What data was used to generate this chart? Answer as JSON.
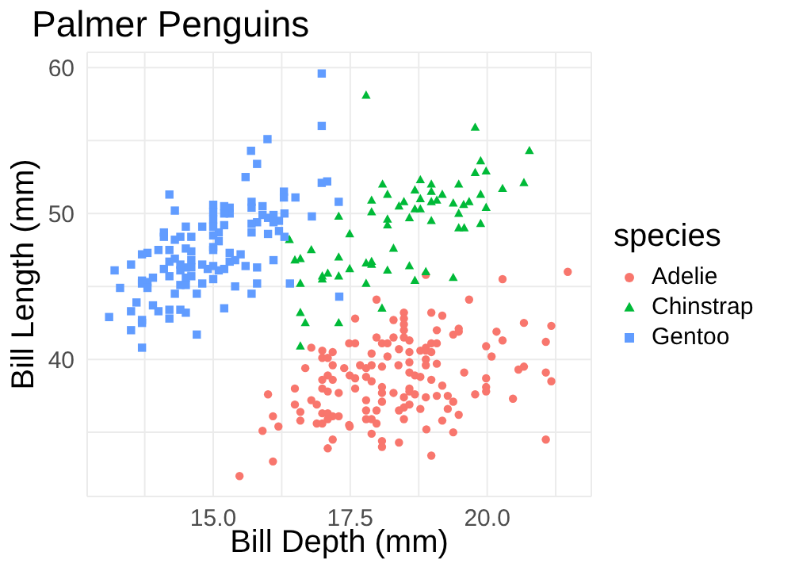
{
  "chart_data": {
    "type": "scatter",
    "title": "Palmer Penguins",
    "xlabel": "Bill Depth (mm)",
    "ylabel": "Bill Length (mm)",
    "legend_title": "species",
    "legend": "right",
    "grid": true,
    "xlim": [
      12.7,
      21.9
    ],
    "xticks": [
      {
        "value": 13.75,
        "label": null
      },
      {
        "value": 15,
        "label": "15.0"
      },
      {
        "value": 16.25,
        "label": null
      },
      {
        "value": 17.5,
        "label": "17.5"
      },
      {
        "value": 18.75,
        "label": null
      },
      {
        "value": 20,
        "label": "20.0"
      },
      {
        "value": 21.25,
        "label": null
      }
    ],
    "ylim": [
      30.6,
      61.05
    ],
    "yticks": [
      {
        "value": 35,
        "label": null
      },
      40,
      {
        "value": 45,
        "label": null
      },
      50,
      {
        "value": 55,
        "label": null
      },
      60
    ],
    "series": [
      {
        "name": "Adelie",
        "color": "#f8766d",
        "marker": "circle",
        "x": [
          18.88,
          20.28,
          21.47,
          17.98,
          19.67,
          17.59,
          18.29,
          18.48,
          18.48,
          18.98,
          19.18,
          20.67,
          21.17,
          19.08,
          19.38,
          19.48,
          19.48,
          20.17,
          20.28,
          21.07,
          17.98,
          18.29,
          18.48,
          18.58,
          18.48,
          18.48,
          18.08,
          18.18,
          17.48,
          17.59,
          16.79,
          16.99,
          17.18,
          18.39,
          18.58,
          18.78,
          18.88,
          18.98,
          19.08,
          18.88,
          18.98,
          17.89,
          18.18,
          16.99,
          17.09,
          18.88,
          18.88,
          19.98,
          20.08,
          16.68,
          17.18,
          17.39,
          17.68,
          17.79,
          17.89,
          18.08,
          18.38,
          18.58,
          19.08,
          20.67,
          20.57,
          21.07,
          21.17,
          19.58,
          18.58,
          18.68,
          18.78,
          17.09,
          17.18,
          17.49,
          17.59,
          17.79,
          17.89,
          16.99,
          16.99,
          18.98,
          19.18,
          19.98,
          19.98,
          19.98,
          19.78,
          16.49,
          16.0,
          17.09,
          17.29,
          17.59,
          18.08,
          18.08,
          18.29,
          18.58,
          18.58,
          18.68,
          18.88,
          19.08,
          19.28,
          20.47,
          16.79,
          16.89,
          16.49,
          16.59,
          17.79,
          18.08,
          18.48,
          18.48,
          18.58,
          18.39,
          19.28,
          19.38,
          19.48,
          18.78,
          16.99,
          17.09,
          17.18,
          17.29,
          17.09,
          17.79,
          17.79,
          17.89,
          17.98,
          17.98,
          18.48,
          16.89,
          16.99,
          17.48,
          17.49,
          16.59,
          16.09,
          16.19,
          15.9,
          17.89,
          18.08,
          18.08,
          18.39,
          18.89,
          19.18,
          19.38,
          17.18,
          17.09,
          21.07,
          16.09,
          18.98,
          15.48
        ],
        "values": [
          45.8,
          45.5,
          46.0,
          44.1,
          44.1,
          42.8,
          42.7,
          43.2,
          42.8,
          43.2,
          43.0,
          42.5,
          42.3,
          42.0,
          41.7,
          41.9,
          42.1,
          41.9,
          41.3,
          41.2,
          41.5,
          41.5,
          41.5,
          41.3,
          42.0,
          42.4,
          41.1,
          41.1,
          41.1,
          41.1,
          40.8,
          40.6,
          40.5,
          40.7,
          40.5,
          40.6,
          40.8,
          41.1,
          41.1,
          40.6,
          40.5,
          40.4,
          40.2,
          40.1,
          40.1,
          40.0,
          39.6,
          40.9,
          40.2,
          39.4,
          39.6,
          39.4,
          39.6,
          39.4,
          39.6,
          39.5,
          39.6,
          39.8,
          39.7,
          39.5,
          39.3,
          39.1,
          38.5,
          39.1,
          39.1,
          38.9,
          38.8,
          38.9,
          38.6,
          38.9,
          38.7,
          38.8,
          38.5,
          38.6,
          38.0,
          38.6,
          38.2,
          38.7,
          38.1,
          37.8,
          37.6,
          38.0,
          37.6,
          37.8,
          37.7,
          38.0,
          38.1,
          37.7,
          37.7,
          38.0,
          37.8,
          37.6,
          37.4,
          37.5,
          37.5,
          37.3,
          37.2,
          36.9,
          36.9,
          36.4,
          37.2,
          37.1,
          37.4,
          36.7,
          36.9,
          36.5,
          36.6,
          37.1,
          36.2,
          36.6,
          36.3,
          36.3,
          36.1,
          36.1,
          35.9,
          36.5,
          35.9,
          35.9,
          36.5,
          35.6,
          35.9,
          35.6,
          35.6,
          35.5,
          35.4,
          35.8,
          36.1,
          35.4,
          35.1,
          34.9,
          34.4,
          34.0,
          34.3,
          35.2,
          35.8,
          35.0,
          34.5,
          33.9,
          34.5,
          33.0,
          33.4,
          32.0
        ]
      },
      {
        "name": "Chinstrap",
        "color": "#00ba38",
        "marker": "triangle",
        "x": [
          17.79,
          19.78,
          20.77,
          19.88,
          19.78,
          19.98,
          18.09,
          18.78,
          18.98,
          19.48,
          20.28,
          20.67,
          18.18,
          18.68,
          18.98,
          19.18,
          19.88,
          17.89,
          18.48,
          18.78,
          18.98,
          19.08,
          18.39,
          18.68,
          18.78,
          19.38,
          19.57,
          19.67,
          19.98,
          19.48,
          17.89,
          17.29,
          18.18,
          18.58,
          18.98,
          18.18,
          19.48,
          19.58,
          19.88,
          17.49,
          16.39,
          16.79,
          18.29,
          16.49,
          16.59,
          17.29,
          17.79,
          17.89,
          17.89,
          17.49,
          18.18,
          18.58,
          18.88,
          16.99,
          17.09,
          16.99,
          17.29,
          16.59,
          17.79,
          18.68,
          19.38,
          16.59,
          16.68,
          17.29,
          18.08,
          16.59
        ],
        "values": [
          58.1,
          55.9,
          54.3,
          53.6,
          52.8,
          52.9,
          52.0,
          52.3,
          52.0,
          52.0,
          51.7,
          52.1,
          51.3,
          51.6,
          51.5,
          51.3,
          51.3,
          50.9,
          50.8,
          51.0,
          50.8,
          50.9,
          50.5,
          50.3,
          50.3,
          50.7,
          50.6,
          50.8,
          50.4,
          50.0,
          50.1,
          49.8,
          49.6,
          49.7,
          49.5,
          49.2,
          49.0,
          49.0,
          49.3,
          48.6,
          48.2,
          47.5,
          47.6,
          46.8,
          46.9,
          47.0,
          46.6,
          46.7,
          46.5,
          46.2,
          46.1,
          46.4,
          46.0,
          45.7,
          45.9,
          45.5,
          45.7,
          45.2,
          45.2,
          45.4,
          45.6,
          43.2,
          42.5,
          42.5,
          43.5,
          40.9
        ]
      },
      {
        "name": "Gentoo",
        "color": "#619cff",
        "marker": "square",
        "x": [
          16.98,
          16.98,
          15.99,
          15.69,
          15.8,
          15.59,
          16.98,
          17.08,
          14.2,
          16.29,
          16.29,
          16.5,
          15.0,
          15.2,
          15.3,
          15.3,
          15.2,
          15.7,
          15.7,
          15.9,
          17.29,
          14.3,
          15.0,
          15.0,
          15.9,
          16.0,
          16.1,
          16.2,
          16.3,
          16.1,
          15.8,
          15.7,
          16.8,
          15.2,
          14.8,
          15.0,
          14.5,
          14.1,
          14.1,
          14.4,
          14.6,
          14.3,
          15.1,
          15.0,
          15.7,
          16.0,
          16.2,
          16.3,
          15.1,
          15.0,
          15.0,
          14.5,
          14.6,
          14.0,
          14.2,
          13.8,
          13.7,
          15.3,
          15.5,
          15.4,
          15.3,
          14.2,
          14.3,
          14.4,
          14.5,
          14.4,
          14.6,
          14.6,
          14.8,
          14.9,
          15.0,
          15.1,
          15.2,
          15.59,
          15.8,
          16.1,
          13.5,
          13.2,
          14.1,
          14.2,
          13.7,
          13.8,
          13.9,
          13.7,
          13.8,
          14.5,
          14.6,
          14.4,
          14.5,
          14.8,
          15.0,
          15.4,
          15.8,
          15.7,
          16.4,
          14.3,
          14.7,
          13.3,
          13.6,
          13.9,
          14.0,
          14.2,
          14.4,
          14.5,
          15.2,
          13.5,
          13.1,
          13.7,
          13.7,
          14.2,
          13.5,
          14.7,
          13.7,
          17.3
        ],
        "values": [
          59.6,
          56.0,
          55.1,
          54.3,
          53.4,
          52.5,
          52.1,
          52.2,
          51.3,
          51.5,
          51.1,
          51.1,
          50.6,
          50.5,
          50.4,
          50.0,
          50.0,
          50.8,
          50.4,
          50.5,
          50.8,
          50.2,
          50.1,
          49.6,
          49.9,
          49.7,
          49.9,
          49.5,
          50.0,
          49.4,
          49.4,
          49.3,
          49.8,
          49.2,
          49.1,
          49.1,
          49.1,
          48.7,
          48.4,
          48.4,
          48.4,
          48.2,
          48.7,
          48.5,
          48.7,
          48.6,
          48.8,
          48.4,
          48.1,
          47.7,
          47.5,
          47.6,
          47.4,
          47.5,
          47.5,
          47.3,
          47.2,
          47.3,
          47.2,
          46.8,
          46.7,
          46.7,
          46.9,
          46.5,
          46.3,
          46.1,
          46.8,
          46.3,
          46.5,
          46.2,
          46.4,
          46.1,
          46.2,
          46.4,
          46.3,
          46.8,
          46.5,
          46.1,
          46.2,
          45.7,
          45.4,
          45.3,
          45.6,
          45.2,
          44.9,
          45.6,
          45.7,
          45.1,
          45.1,
          45.2,
          45.5,
          45.0,
          45.2,
          44.5,
          45.2,
          44.5,
          44.5,
          44.9,
          43.9,
          43.7,
          43.3,
          43.4,
          43.4,
          43.2,
          43.5,
          43.3,
          42.9,
          42.7,
          42.5,
          42.8,
          42.0,
          41.7,
          40.8,
          44.3
        ]
      }
    ]
  }
}
